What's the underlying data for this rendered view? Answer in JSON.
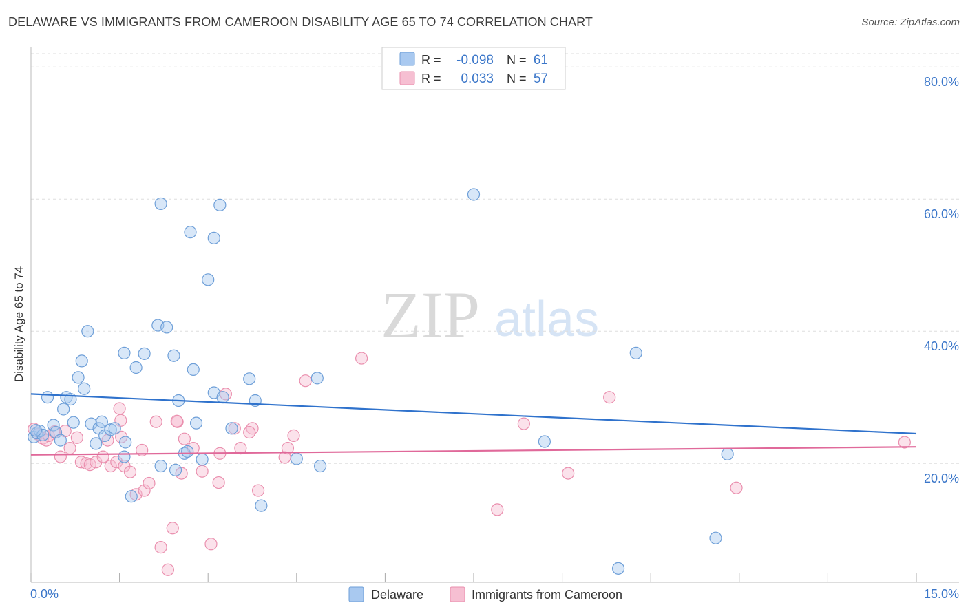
{
  "header": {
    "title": "DELAWARE VS IMMIGRANTS FROM CAMEROON DISABILITY AGE 65 TO 74 CORRELATION CHART",
    "source": "Source: ZipAtlas.com"
  },
  "watermark": {
    "zip": "ZIP",
    "atlas": "atlas"
  },
  "legend_box": {
    "rows": [
      {
        "r_label": "R =",
        "r_value": "-0.098",
        "n_label": "N =",
        "n_value": "61"
      },
      {
        "r_label": "R =",
        "r_value": "0.033",
        "n_label": "N =",
        "n_value": "57"
      }
    ]
  },
  "bottom_legend": {
    "items": [
      "Delaware",
      "Immigrants from Cameroon"
    ]
  },
  "colors": {
    "blue_fill": "#a9c9f0",
    "blue_stroke": "#6e9fd8",
    "blue_line": "#2f72cc",
    "pink_fill": "#f6bfd2",
    "pink_stroke": "#ea8fae",
    "pink_line": "#e0699a",
    "axis_text": "#3a76c9",
    "grid": "#dddddd"
  },
  "chart_data": {
    "type": "scatter",
    "title": "DELAWARE VS IMMIGRANTS FROM CAMEROON DISABILITY AGE 65 TO 74 CORRELATION CHART",
    "xlabel": "",
    "ylabel": "Disability Age 65 to 74",
    "xlim": [
      0,
      15
    ],
    "ylim": [
      2,
      82
    ],
    "x_tick_labels": [
      "0.0%",
      "15.0%"
    ],
    "y_ticks": [
      20,
      40,
      60,
      80
    ],
    "y_tick_labels": [
      "20.0%",
      "40.0%",
      "60.0%",
      "80.0%"
    ],
    "series": [
      {
        "name": "Delaware",
        "r": -0.098,
        "n": 61,
        "trend": {
          "x": [
            0,
            15
          ],
          "y": [
            30.5,
            24.5
          ]
        },
        "points": [
          [
            0.05,
            24.0
          ],
          [
            0.1,
            24.6
          ],
          [
            0.15,
            24.9
          ],
          [
            0.2,
            24.3
          ],
          [
            0.28,
            30.0
          ],
          [
            0.38,
            25.8
          ],
          [
            0.42,
            24.7
          ],
          [
            0.5,
            23.5
          ],
          [
            0.55,
            28.2
          ],
          [
            0.6,
            30.0
          ],
          [
            0.67,
            29.7
          ],
          [
            0.72,
            26.2
          ],
          [
            0.8,
            33.0
          ],
          [
            0.86,
            35.5
          ],
          [
            0.9,
            31.3
          ],
          [
            0.96,
            40.0
          ],
          [
            1.02,
            26.0
          ],
          [
            1.1,
            23.0
          ],
          [
            1.15,
            25.3
          ],
          [
            1.2,
            26.3
          ],
          [
            1.25,
            24.2
          ],
          [
            1.35,
            25.1
          ],
          [
            1.42,
            25.3
          ],
          [
            1.58,
            21.0
          ],
          [
            1.6,
            23.2
          ],
          [
            1.7,
            15.0
          ],
          [
            1.78,
            34.5
          ],
          [
            1.92,
            36.6
          ],
          [
            2.15,
            40.9
          ],
          [
            2.2,
            19.6
          ],
          [
            2.3,
            40.6
          ],
          [
            2.42,
            36.3
          ],
          [
            2.5,
            29.5
          ],
          [
            2.6,
            21.5
          ],
          [
            2.75,
            34.2
          ],
          [
            2.8,
            26.1
          ],
          [
            2.9,
            20.6
          ],
          [
            1.58,
            36.7
          ],
          [
            2.2,
            59.3
          ],
          [
            2.7,
            55.0
          ],
          [
            3.1,
            54.1
          ],
          [
            3.2,
            59.1
          ],
          [
            3.0,
            47.8
          ],
          [
            2.45,
            19.0
          ],
          [
            2.65,
            21.8
          ],
          [
            3.1,
            30.7
          ],
          [
            3.25,
            30.0
          ],
          [
            3.4,
            25.3
          ],
          [
            3.7,
            32.8
          ],
          [
            3.8,
            29.5
          ],
          [
            3.9,
            13.6
          ],
          [
            4.5,
            20.7
          ],
          [
            4.9,
            19.6
          ],
          [
            4.85,
            32.9
          ],
          [
            7.5,
            60.7
          ],
          [
            8.7,
            23.3
          ],
          [
            9.95,
            4.1
          ],
          [
            10.25,
            36.7
          ],
          [
            11.6,
            8.7
          ],
          [
            11.8,
            21.4
          ],
          [
            0.08,
            25.0
          ]
        ]
      },
      {
        "name": "Immigrants from Cameroon",
        "r": 0.033,
        "n": 57,
        "trend": {
          "x": [
            0,
            15
          ],
          "y": [
            21.3,
            22.5
          ]
        },
        "points": [
          [
            0.05,
            25.2
          ],
          [
            0.12,
            24.4
          ],
          [
            0.2,
            23.8
          ],
          [
            0.26,
            23.5
          ],
          [
            0.3,
            24.2
          ],
          [
            0.4,
            24.8
          ],
          [
            0.5,
            21.0
          ],
          [
            0.58,
            24.9
          ],
          [
            0.66,
            22.3
          ],
          [
            0.78,
            23.9
          ],
          [
            0.85,
            20.2
          ],
          [
            0.94,
            20.0
          ],
          [
            1.0,
            19.8
          ],
          [
            1.1,
            20.2
          ],
          [
            1.22,
            21.0
          ],
          [
            1.3,
            23.5
          ],
          [
            1.35,
            19.6
          ],
          [
            1.45,
            20.2
          ],
          [
            1.53,
            24.0
          ],
          [
            1.58,
            19.6
          ],
          [
            1.68,
            18.7
          ],
          [
            1.78,
            15.3
          ],
          [
            1.88,
            22.0
          ],
          [
            1.92,
            15.9
          ],
          [
            2.0,
            17.0
          ],
          [
            2.12,
            26.3
          ],
          [
            2.2,
            7.3
          ],
          [
            2.32,
            3.9
          ],
          [
            2.4,
            10.2
          ],
          [
            2.48,
            26.3
          ],
          [
            2.55,
            18.5
          ],
          [
            2.6,
            23.7
          ],
          [
            2.75,
            22.3
          ],
          [
            2.9,
            18.8
          ],
          [
            3.05,
            7.8
          ],
          [
            3.2,
            21.5
          ],
          [
            3.3,
            30.5
          ],
          [
            3.45,
            25.3
          ],
          [
            3.55,
            22.3
          ],
          [
            3.75,
            25.3
          ],
          [
            3.85,
            15.9
          ],
          [
            4.3,
            20.9
          ],
          [
            4.35,
            22.3
          ],
          [
            4.45,
            24.2
          ],
          [
            4.65,
            32.5
          ],
          [
            5.6,
            35.9
          ],
          [
            7.9,
            13.0
          ],
          [
            8.35,
            26.0
          ],
          [
            9.1,
            18.5
          ],
          [
            9.8,
            30.0
          ],
          [
            11.95,
            16.3
          ],
          [
            14.8,
            23.2
          ],
          [
            1.5,
            28.3
          ],
          [
            1.52,
            26.5
          ],
          [
            3.7,
            24.7
          ],
          [
            3.18,
            17.1
          ],
          [
            2.47,
            26.4
          ]
        ]
      }
    ]
  }
}
